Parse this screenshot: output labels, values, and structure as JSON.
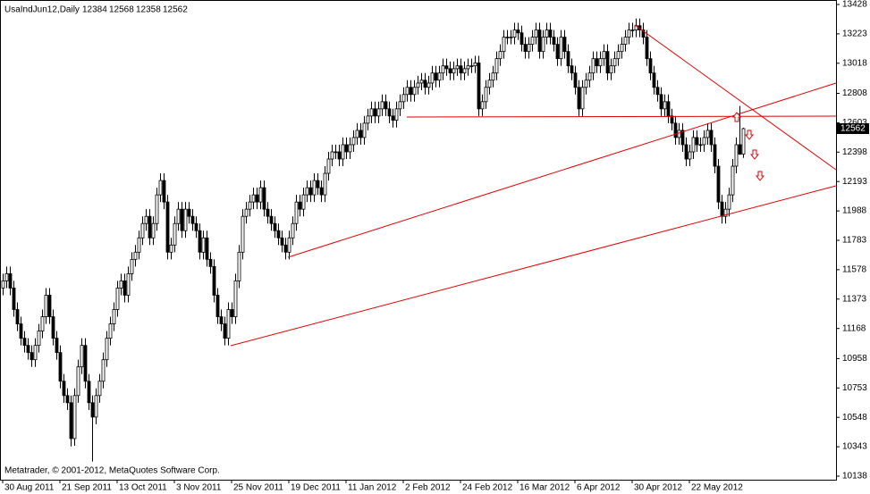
{
  "chart_data": {
    "type": "candlestick",
    "title": "UsaIndJun12,Daily",
    "header_values": [
      12384,
      12568,
      12358,
      12562
    ],
    "footer": "Metatrader, © 2001-2012, MetaQuotes Software Corp.",
    "current_price": 12562,
    "up_color": "#ffffff",
    "down_color": "#000000",
    "wick_color": "#000000",
    "ylim": [
      10138,
      13428
    ],
    "yticks": [
      13428,
      13223,
      13018,
      12808,
      12603,
      12398,
      12193,
      11988,
      11783,
      11578,
      11373,
      11168,
      10958,
      10753,
      10548,
      10343,
      10138
    ],
    "xlim": [
      -0.75,
      233
    ],
    "xticks": [
      {
        "value": 0,
        "label": "30 Aug 2011"
      },
      {
        "value": 16,
        "label": "21 Sep 2011"
      },
      {
        "value": 32,
        "label": "13 Oct 2011"
      },
      {
        "value": 48,
        "label": "3 Nov 2011"
      },
      {
        "value": 64,
        "label": "25 Nov 2011"
      },
      {
        "value": 80,
        "label": "19 Dec 2011"
      },
      {
        "value": 96,
        "label": "11 Jan 2012"
      },
      {
        "value": 112,
        "label": "2 Feb 2012"
      },
      {
        "value": 128,
        "label": "24 Feb 2012"
      },
      {
        "value": 144,
        "label": "16 Mar 2012"
      },
      {
        "value": 160,
        "label": "6 Apr 2012"
      },
      {
        "value": 176,
        "label": "30 Apr 2012"
      },
      {
        "value": 192,
        "label": "22 May 2012"
      }
    ],
    "ohlc": [
      [
        11450,
        11550,
        11400,
        11500
      ],
      [
        11500,
        11600,
        11450,
        11550
      ],
      [
        11550,
        11600,
        11400,
        11450
      ],
      [
        11450,
        11500,
        11250,
        11300
      ],
      [
        11300,
        11350,
        11150,
        11200
      ],
      [
        11200,
        11250,
        11050,
        11100
      ],
      [
        11100,
        11150,
        11000,
        11050
      ],
      [
        11050,
        11100,
        10950,
        11000
      ],
      [
        11000,
        11050,
        10900,
        10950
      ],
      [
        10950,
        11100,
        10900,
        11050
      ],
      [
        11050,
        11200,
        11000,
        11150
      ],
      [
        11150,
        11300,
        11100,
        11250
      ],
      [
        11250,
        11450,
        11200,
        11400
      ],
      [
        11400,
        11450,
        11200,
        11250
      ],
      [
        11250,
        11300,
        11050,
        11100
      ],
      [
        11100,
        11150,
        10950,
        11000
      ],
      [
        11000,
        11050,
        10750,
        10800
      ],
      [
        10800,
        10850,
        10650,
        10700
      ],
      [
        10700,
        10750,
        10600,
        10650
      ],
      [
        10650,
        10700,
        10345,
        10400
      ],
      [
        10400,
        10750,
        10350,
        10700
      ],
      [
        10700,
        10950,
        10650,
        10900
      ],
      [
        10900,
        11100,
        10850,
        11050
      ],
      [
        11050,
        11100,
        10750,
        10800
      ],
      [
        10800,
        10850,
        10600,
        10650
      ],
      [
        10650,
        10700,
        10240,
        10550
      ],
      [
        10550,
        10750,
        10500,
        10700
      ],
      [
        10700,
        10850,
        10650,
        10800
      ],
      [
        10800,
        11000,
        10750,
        10950
      ],
      [
        10950,
        11150,
        10900,
        11100
      ],
      [
        11100,
        11250,
        11050,
        11200
      ],
      [
        11200,
        11350,
        11150,
        11300
      ],
      [
        11300,
        11500,
        11250,
        11450
      ],
      [
        11450,
        11550,
        11400,
        11500
      ],
      [
        11500,
        11550,
        11350,
        11400
      ],
      [
        11400,
        11600,
        11350,
        11550
      ],
      [
        11550,
        11700,
        11500,
        11650
      ],
      [
        11650,
        11750,
        11600,
        11700
      ],
      [
        11700,
        11850,
        11650,
        11800
      ],
      [
        11800,
        11950,
        11750,
        11900
      ],
      [
        11900,
        12000,
        11850,
        11950
      ],
      [
        11950,
        12000,
        11750,
        11800
      ],
      [
        11800,
        11950,
        11750,
        11900
      ],
      [
        11900,
        12150,
        11850,
        12100
      ],
      [
        12100,
        12250,
        12050,
        12200
      ],
      [
        12200,
        12250,
        12000,
        12050
      ],
      [
        12050,
        12100,
        11650,
        11700
      ],
      [
        11700,
        11800,
        11650,
        11750
      ],
      [
        11750,
        11950,
        11700,
        11900
      ],
      [
        11900,
        12050,
        11850,
        12000
      ],
      [
        12000,
        12050,
        11800,
        11850
      ],
      [
        11850,
        12050,
        11800,
        12000
      ],
      [
        12000,
        12050,
        11900,
        11950
      ],
      [
        11950,
        12000,
        11850,
        11900
      ],
      [
        11900,
        11950,
        11800,
        11850
      ],
      [
        11850,
        11900,
        11650,
        11700
      ],
      [
        11700,
        11850,
        11650,
        11800
      ],
      [
        11800,
        11850,
        11600,
        11650
      ],
      [
        11650,
        11700,
        11550,
        11600
      ],
      [
        11600,
        11650,
        11350,
        11400
      ],
      [
        11400,
        11450,
        11200,
        11250
      ],
      [
        11250,
        11300,
        11150,
        11200
      ],
      [
        11200,
        11250,
        11050,
        11100
      ],
      [
        11100,
        11350,
        11050,
        11300
      ],
      [
        11300,
        11350,
        11200,
        11250
      ],
      [
        11250,
        11550,
        11200,
        11500
      ],
      [
        11500,
        11750,
        11450,
        11700
      ],
      [
        11700,
        12000,
        11650,
        11950
      ],
      [
        11950,
        12050,
        11900,
        12000
      ],
      [
        12000,
        12100,
        11950,
        12050
      ],
      [
        12050,
        12150,
        12000,
        12100
      ],
      [
        12100,
        12150,
        12000,
        12050
      ],
      [
        12050,
        12200,
        12000,
        12150
      ],
      [
        12150,
        12200,
        11950,
        12000
      ],
      [
        12000,
        12050,
        11900,
        11950
      ],
      [
        11950,
        12000,
        11850,
        11900
      ],
      [
        11900,
        11950,
        11800,
        11850
      ],
      [
        11850,
        11900,
        11750,
        11800
      ],
      [
        11800,
        11850,
        11700,
        11750
      ],
      [
        11750,
        11800,
        11650,
        11700
      ],
      [
        11700,
        11850,
        11650,
        11800
      ],
      [
        11800,
        11950,
        11750,
        11900
      ],
      [
        11900,
        12100,
        11850,
        12050
      ],
      [
        12050,
        12100,
        11950,
        12000
      ],
      [
        12000,
        12150,
        11950,
        12100
      ],
      [
        12100,
        12200,
        12050,
        12150
      ],
      [
        12150,
        12200,
        12050,
        12100
      ],
      [
        12100,
        12250,
        12050,
        12200
      ],
      [
        12200,
        12250,
        12100,
        12150
      ],
      [
        12150,
        12200,
        12050,
        12100
      ],
      [
        12100,
        12300,
        12050,
        12250
      ],
      [
        12250,
        12400,
        12200,
        12350
      ],
      [
        12350,
        12450,
        12300,
        12400
      ],
      [
        12400,
        12450,
        12350,
        12400
      ],
      [
        12400,
        12450,
        12300,
        12350
      ],
      [
        12350,
        12500,
        12300,
        12450
      ],
      [
        12450,
        12500,
        12350,
        12400
      ],
      [
        12400,
        12500,
        12350,
        12450
      ],
      [
        12450,
        12550,
        12400,
        12500
      ],
      [
        12500,
        12600,
        12450,
        12550
      ],
      [
        12550,
        12600,
        12450,
        12500
      ],
      [
        12500,
        12650,
        12450,
        12600
      ],
      [
        12600,
        12700,
        12550,
        12650
      ],
      [
        12650,
        12750,
        12600,
        12700
      ],
      [
        12700,
        12750,
        12600,
        12650
      ],
      [
        12650,
        12750,
        12600,
        12700
      ],
      [
        12700,
        12800,
        12650,
        12750
      ],
      [
        12750,
        12800,
        12650,
        12700
      ],
      [
        12700,
        12750,
        12600,
        12650
      ],
      [
        12650,
        12700,
        12570,
        12620
      ],
      [
        12620,
        12750,
        12570,
        12700
      ],
      [
        12700,
        12800,
        12650,
        12750
      ],
      [
        12750,
        12850,
        12700,
        12800
      ],
      [
        12800,
        12900,
        12750,
        12850
      ],
      [
        12850,
        12900,
        12750,
        12800
      ],
      [
        12800,
        12900,
        12750,
        12850
      ],
      [
        12850,
        12930,
        12800,
        12880
      ],
      [
        12880,
        12950,
        12830,
        12900
      ],
      [
        12900,
        12950,
        12800,
        12850
      ],
      [
        12850,
        12930,
        12800,
        12880
      ],
      [
        12880,
        13000,
        12830,
        12950
      ],
      [
        12950,
        13000,
        12850,
        12900
      ],
      [
        12900,
        13000,
        12850,
        12950
      ],
      [
        12950,
        13050,
        12900,
        13000
      ],
      [
        13000,
        13050,
        12930,
        12980
      ],
      [
        12980,
        13030,
        12900,
        12950
      ],
      [
        12950,
        13030,
        12900,
        12980
      ],
      [
        12980,
        13050,
        12930,
        13000
      ],
      [
        13000,
        13050,
        12900,
        12950
      ],
      [
        12950,
        13030,
        12900,
        12980
      ],
      [
        12980,
        13050,
        12930,
        13000
      ],
      [
        13000,
        13050,
        12950,
        13000
      ],
      [
        13000,
        13070,
        12950,
        13020
      ],
      [
        13020,
        13070,
        12650,
        12700
      ],
      [
        12700,
        12800,
        12650,
        12750
      ],
      [
        12750,
        12900,
        12700,
        12850
      ],
      [
        12850,
        12950,
        12800,
        12900
      ],
      [
        12900,
        13000,
        12850,
        12950
      ],
      [
        12950,
        13100,
        12900,
        13050
      ],
      [
        13050,
        13150,
        13000,
        13100
      ],
      [
        13100,
        13250,
        13050,
        13200
      ],
      [
        13200,
        13250,
        13150,
        13200
      ],
      [
        13200,
        13250,
        13150,
        13200
      ],
      [
        13200,
        13300,
        13150,
        13250
      ],
      [
        13250,
        13300,
        13180,
        13230
      ],
      [
        13230,
        13280,
        13100,
        13150
      ],
      [
        13150,
        13200,
        13050,
        13100
      ],
      [
        13100,
        13200,
        13050,
        13150
      ],
      [
        13150,
        13250,
        13100,
        13200
      ],
      [
        13200,
        13300,
        13150,
        13250
      ],
      [
        13250,
        13300,
        13050,
        13100
      ],
      [
        13100,
        13250,
        13050,
        13200
      ],
      [
        13200,
        13300,
        13150,
        13250
      ],
      [
        13250,
        13300,
        13150,
        13200
      ],
      [
        13200,
        13250,
        13100,
        13150
      ],
      [
        13150,
        13200,
        13000,
        13050
      ],
      [
        13050,
        13250,
        13000,
        13200
      ],
      [
        13200,
        13250,
        13050,
        13100
      ],
      [
        13100,
        13150,
        12950,
        13000
      ],
      [
        13000,
        13050,
        12900,
        12950
      ],
      [
        12950,
        13000,
        12800,
        12850
      ],
      [
        12850,
        12900,
        12650,
        12700
      ],
      [
        12700,
        12900,
        12650,
        12850
      ],
      [
        12850,
        12950,
        12800,
        12900
      ],
      [
        12900,
        13000,
        12850,
        12950
      ],
      [
        12950,
        13100,
        12900,
        13050
      ],
      [
        13050,
        13100,
        12950,
        13000
      ],
      [
        13000,
        13100,
        12950,
        13050
      ],
      [
        13050,
        13150,
        13000,
        13100
      ],
      [
        13100,
        13150,
        12900,
        12950
      ],
      [
        12950,
        13050,
        12900,
        13000
      ],
      [
        13000,
        13100,
        12950,
        13050
      ],
      [
        13050,
        13150,
        13000,
        13100
      ],
      [
        13100,
        13200,
        13050,
        13150
      ],
      [
        13150,
        13250,
        13100,
        13200
      ],
      [
        13200,
        13300,
        13150,
        13250
      ],
      [
        13250,
        13300,
        13200,
        13250
      ],
      [
        13250,
        13330,
        13200,
        13280
      ],
      [
        13280,
        13330,
        13200,
        13250
      ],
      [
        13250,
        13300,
        13150,
        13200
      ],
      [
        13200,
        13250,
        13000,
        13050
      ],
      [
        13050,
        13100,
        12900,
        12950
      ],
      [
        12950,
        13000,
        12800,
        12850
      ],
      [
        12850,
        12900,
        12750,
        12800
      ],
      [
        12800,
        12850,
        12650,
        12700
      ],
      [
        12700,
        12800,
        12650,
        12750
      ],
      [
        12750,
        12800,
        12600,
        12650
      ],
      [
        12650,
        12700,
        12550,
        12600
      ],
      [
        12600,
        12650,
        12450,
        12500
      ],
      [
        12500,
        12600,
        12450,
        12550
      ],
      [
        12550,
        12600,
        12400,
        12450
      ],
      [
        12450,
        12500,
        12300,
        12350
      ],
      [
        12350,
        12450,
        12300,
        12400
      ],
      [
        12400,
        12550,
        12350,
        12500
      ],
      [
        12500,
        12550,
        12400,
        12450
      ],
      [
        12450,
        12500,
        12400,
        12450
      ],
      [
        12450,
        12550,
        12400,
        12500
      ],
      [
        12500,
        12600,
        12450,
        12550
      ],
      [
        12550,
        12600,
        12400,
        12450
      ],
      [
        12450,
        12500,
        12250,
        12300
      ],
      [
        12300,
        12350,
        12000,
        12050
      ],
      [
        12050,
        12100,
        11900,
        11950
      ],
      [
        11950,
        12050,
        11900,
        12000
      ],
      [
        12000,
        12150,
        11950,
        12100
      ],
      [
        12100,
        12350,
        12050,
        12300
      ],
      [
        12300,
        12500,
        12250,
        12450
      ],
      [
        12450,
        12720,
        12380,
        12384
      ],
      [
        12384,
        12568,
        12358,
        12562
      ]
    ]
  }
}
